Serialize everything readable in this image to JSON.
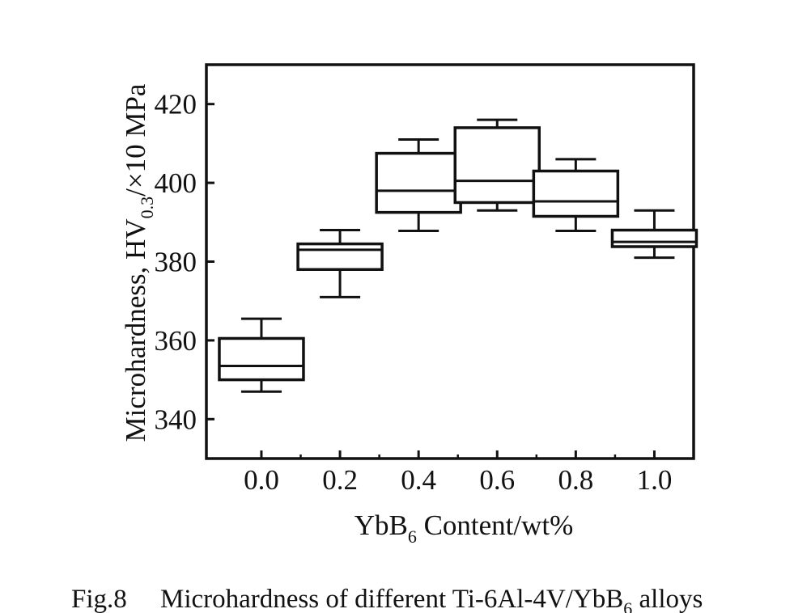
{
  "chart_data": {
    "type": "box",
    "categories": [
      "0.0",
      "0.2",
      "0.4",
      "0.6",
      "0.8",
      "1.0"
    ],
    "x_values": [
      0.0,
      0.2,
      0.4,
      0.6,
      0.8,
      1.0
    ],
    "boxes": [
      {
        "x": 0.0,
        "whisker_low": 347,
        "q1": 350,
        "median": 353.5,
        "q3": 360.5,
        "whisker_high": 365.5
      },
      {
        "x": 0.2,
        "whisker_low": 371,
        "q1": 378,
        "median": 383,
        "q3": 384.5,
        "whisker_high": 388
      },
      {
        "x": 0.4,
        "whisker_low": 387.8,
        "q1": 392.5,
        "median": 398,
        "q3": 407.5,
        "whisker_high": 411
      },
      {
        "x": 0.6,
        "whisker_low": 393,
        "q1": 395,
        "median": 400.5,
        "q3": 414,
        "whisker_high": 416
      },
      {
        "x": 0.8,
        "whisker_low": 387.8,
        "q1": 391.5,
        "median": 395.3,
        "q3": 403,
        "whisker_high": 406
      },
      {
        "x": 1.0,
        "whisker_low": 381,
        "q1": 383.8,
        "median": 385,
        "q3": 388,
        "whisker_high": 393
      }
    ],
    "y_ticks": [
      "340",
      "360",
      "380",
      "400",
      "420"
    ],
    "y_tick_values": [
      340,
      360,
      380,
      400,
      420
    ],
    "xlim": [
      -0.14,
      1.1
    ],
    "ylim": [
      330,
      430
    ],
    "xlabel": {
      "main": "YbB",
      "sub": "6",
      "rest": " Content/wt%"
    },
    "ylabel": {
      "main": "Microhardness, HV",
      "sub": "0.3",
      "rest": "/×10 MPa"
    },
    "grid": false
  },
  "caption": {
    "label": "Fig.8",
    "text_main": "Microhardness of different Ti-6Al-4V/YbB",
    "text_sub": "6",
    "text_rest": " alloys"
  },
  "colors": {
    "line": "#111111",
    "background": "#ffffff"
  }
}
